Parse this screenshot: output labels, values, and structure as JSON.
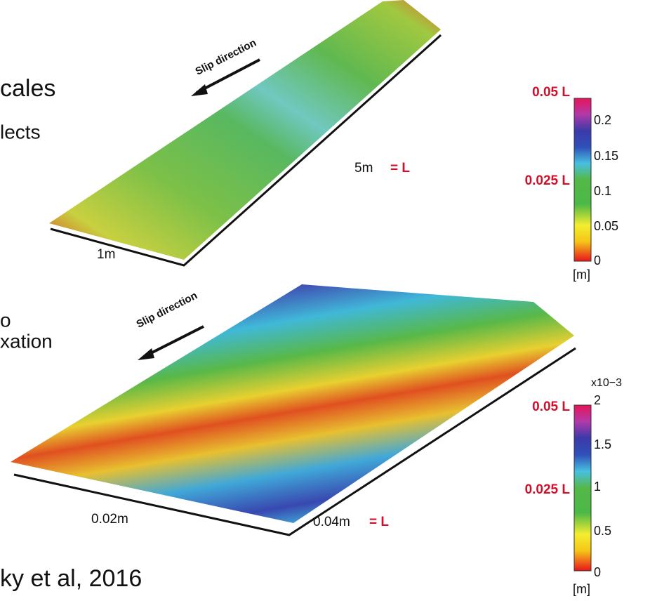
{
  "slide_fragments": [
    "cales",
    "lects",
    "o",
    "xation",
    "ky et al, 2016"
  ],
  "top_panel": {
    "slip": "Slip direction",
    "length": "5m",
    "length_eq": "= L",
    "width": "1m",
    "colorbar": {
      "marks": [
        "0.05 L",
        "0.025 L"
      ],
      "ticks": [
        "0.2",
        "0.15",
        "0.1",
        "0.05",
        "0"
      ],
      "unit": "[m]"
    }
  },
  "bottom_panel": {
    "slip": "Slip direction",
    "width": "0.02m",
    "length": "0.04m",
    "length_eq": "= L",
    "colorbar": {
      "scale": "x10−3",
      "marks": [
        "0.05 L",
        "0.025 L"
      ],
      "ticks": [
        "2",
        "1.5",
        "1",
        "0.5",
        "0"
      ],
      "unit": "[m]"
    }
  }
}
